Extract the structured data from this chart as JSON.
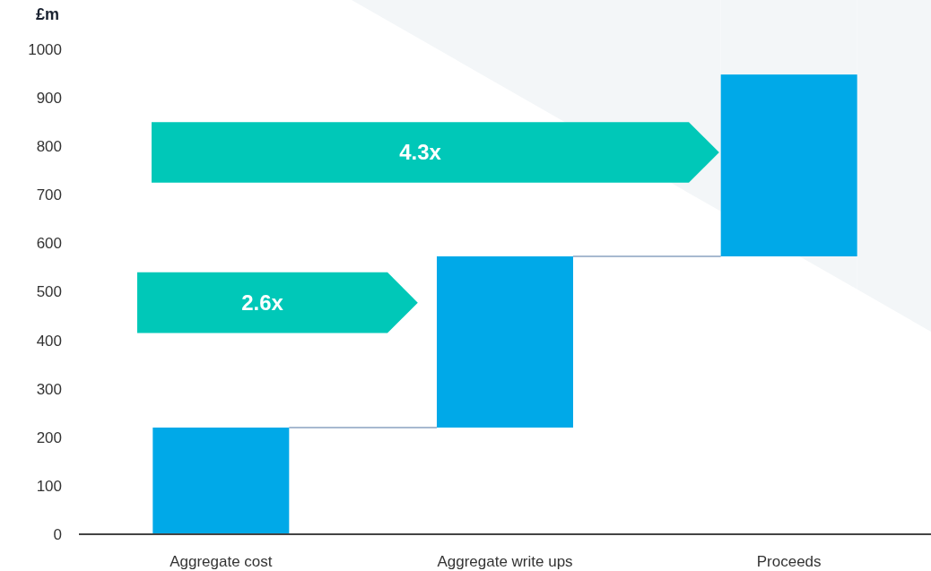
{
  "chart_data": {
    "type": "bar",
    "ylabel": "£m",
    "categories": [
      "Aggregate cost",
      "Aggregate write ups",
      "Proceeds"
    ],
    "values": [
      220,
      353,
      375
    ],
    "base": [
      0,
      220,
      573
    ],
    "color": "#00a9e8",
    "ylim": [
      0,
      1000
    ],
    "yticks": [
      0,
      100,
      200,
      300,
      400,
      500,
      600,
      700,
      800,
      900,
      1000
    ],
    "grid": false,
    "annotations": [
      "2.6x",
      "4.3x"
    ]
  }
}
